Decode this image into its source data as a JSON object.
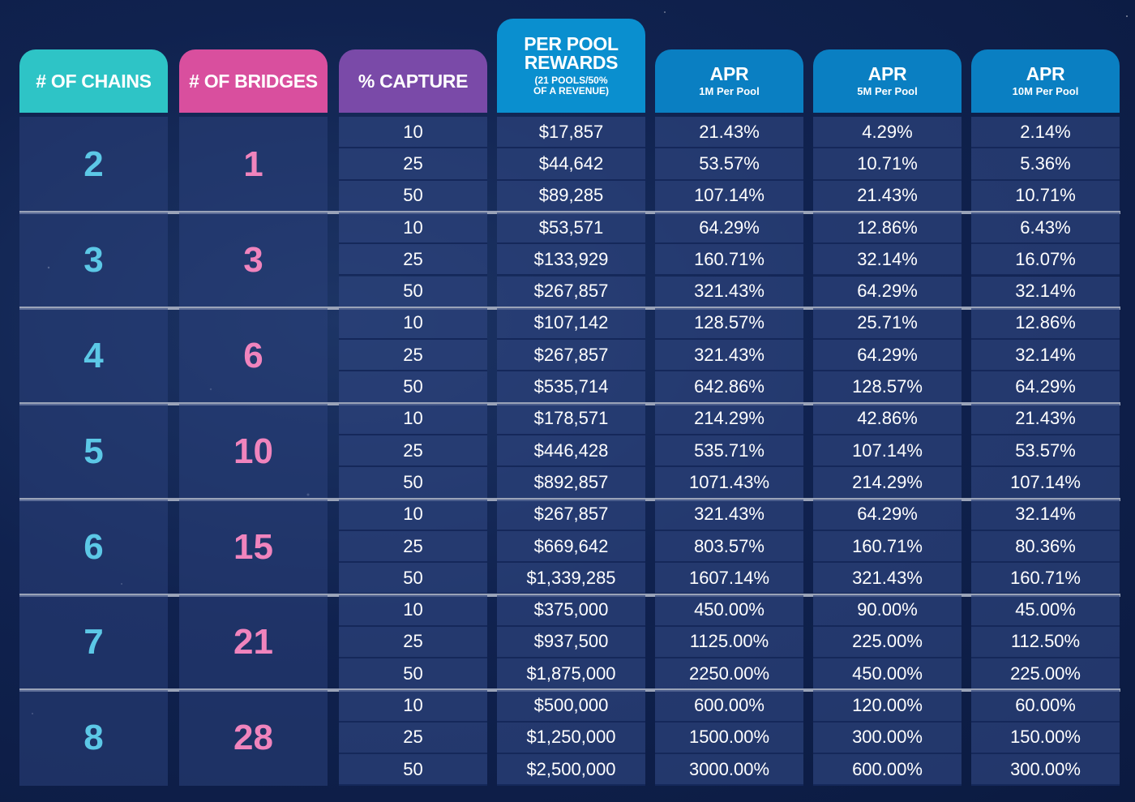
{
  "headers": {
    "chains": "# OF CHAINS",
    "bridges": "# OF BRIDGES",
    "capture": "% CAPTURE",
    "rewards_line1": "PER POOL",
    "rewards_line2": "REWARDS",
    "rewards_note_line1": "(21 POOLS/50%",
    "rewards_note_line2": "OF A REVENUE)",
    "apr1_title": "APR",
    "apr1_sub": "1M Per Pool",
    "apr2_title": "APR",
    "apr2_sub": "5M Per Pool",
    "apr3_title": "APR",
    "apr3_sub": "10M Per Pool"
  },
  "colors": {
    "chains_header": "#2ec4c6",
    "bridges_header": "#d94f9e",
    "capture_header": "#7a4aa8",
    "rewards_header": "#0a8fcf",
    "apr_header": "#0a7fc2",
    "chains_value": "#5cc8e6",
    "bridges_value": "#f084bd",
    "separator": "#9aa3b8"
  },
  "groups": [
    {
      "chains": "2",
      "bridges": "1",
      "rows": [
        {
          "capture": "10",
          "rewards": "$17,857",
          "apr1": "21.43%",
          "apr2": "4.29%",
          "apr3": "2.14%"
        },
        {
          "capture": "25",
          "rewards": "$44,642",
          "apr1": "53.57%",
          "apr2": "10.71%",
          "apr3": "5.36%"
        },
        {
          "capture": "50",
          "rewards": "$89,285",
          "apr1": "107.14%",
          "apr2": "21.43%",
          "apr3": "10.71%"
        }
      ]
    },
    {
      "chains": "3",
      "bridges": "3",
      "rows": [
        {
          "capture": "10",
          "rewards": "$53,571",
          "apr1": "64.29%",
          "apr2": "12.86%",
          "apr3": "6.43%"
        },
        {
          "capture": "25",
          "rewards": "$133,929",
          "apr1": "160.71%",
          "apr2": "32.14%",
          "apr3": "16.07%"
        },
        {
          "capture": "50",
          "rewards": "$267,857",
          "apr1": "321.43%",
          "apr2": "64.29%",
          "apr3": "32.14%"
        }
      ]
    },
    {
      "chains": "4",
      "bridges": "6",
      "rows": [
        {
          "capture": "10",
          "rewards": "$107,142",
          "apr1": "128.57%",
          "apr2": "25.71%",
          "apr3": "12.86%"
        },
        {
          "capture": "25",
          "rewards": "$267,857",
          "apr1": "321.43%",
          "apr2": "64.29%",
          "apr3": "32.14%"
        },
        {
          "capture": "50",
          "rewards": "$535,714",
          "apr1": "642.86%",
          "apr2": "128.57%",
          "apr3": "64.29%"
        }
      ]
    },
    {
      "chains": "5",
      "bridges": "10",
      "rows": [
        {
          "capture": "10",
          "rewards": "$178,571",
          "apr1": "214.29%",
          "apr2": "42.86%",
          "apr3": "21.43%"
        },
        {
          "capture": "25",
          "rewards": "$446,428",
          "apr1": "535.71%",
          "apr2": "107.14%",
          "apr3": "53.57%"
        },
        {
          "capture": "50",
          "rewards": "$892,857",
          "apr1": "1071.43%",
          "apr2": "214.29%",
          "apr3": "107.14%"
        }
      ]
    },
    {
      "chains": "6",
      "bridges": "15",
      "rows": [
        {
          "capture": "10",
          "rewards": "$267,857",
          "apr1": "321.43%",
          "apr2": "64.29%",
          "apr3": "32.14%"
        },
        {
          "capture": "25",
          "rewards": "$669,642",
          "apr1": "803.57%",
          "apr2": "160.71%",
          "apr3": "80.36%"
        },
        {
          "capture": "50",
          "rewards": "$1,339,285",
          "apr1": "1607.14%",
          "apr2": "321.43%",
          "apr3": "160.71%"
        }
      ]
    },
    {
      "chains": "7",
      "bridges": "21",
      "rows": [
        {
          "capture": "10",
          "rewards": "$375,000",
          "apr1": "450.00%",
          "apr2": "90.00%",
          "apr3": "45.00%"
        },
        {
          "capture": "25",
          "rewards": "$937,500",
          "apr1": "1125.00%",
          "apr2": "225.00%",
          "apr3": "112.50%"
        },
        {
          "capture": "50",
          "rewards": "$1,875,000",
          "apr1": "2250.00%",
          "apr2": "450.00%",
          "apr3": "225.00%"
        }
      ]
    },
    {
      "chains": "8",
      "bridges": "28",
      "rows": [
        {
          "capture": "10",
          "rewards": "$500,000",
          "apr1": "600.00%",
          "apr2": "120.00%",
          "apr3": "60.00%"
        },
        {
          "capture": "25",
          "rewards": "$1,250,000",
          "apr1": "1500.00%",
          "apr2": "300.00%",
          "apr3": "150.00%"
        },
        {
          "capture": "50",
          "rewards": "$2,500,000",
          "apr1": "3000.00%",
          "apr2": "600.00%",
          "apr3": "300.00%"
        }
      ]
    }
  ]
}
